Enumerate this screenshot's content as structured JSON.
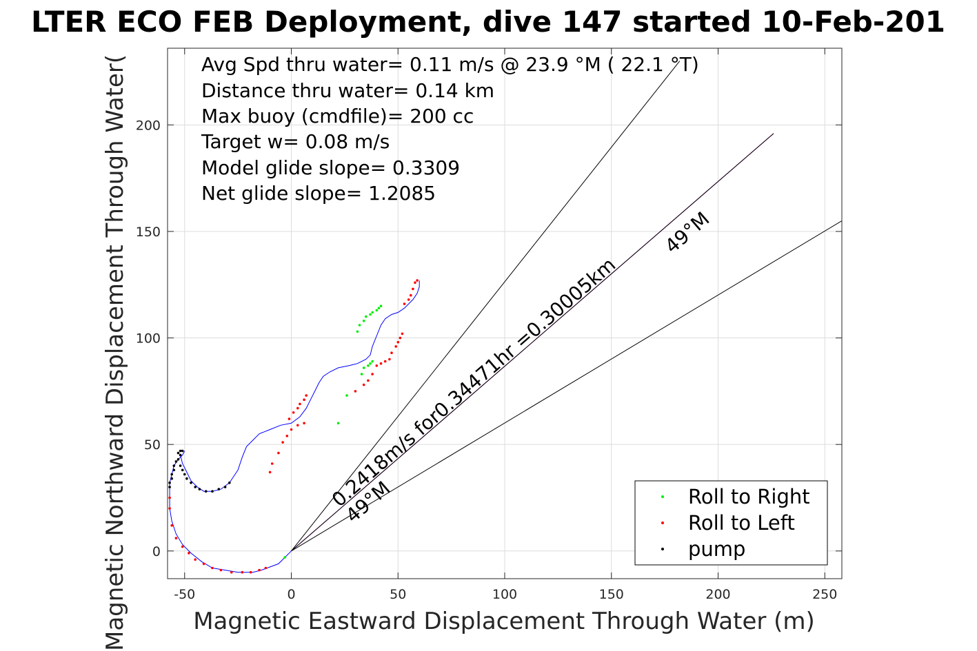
{
  "chart_data": {
    "type": "scatter",
    "title": "LTER ECO FEB Deployment, dive 147 started 10-Feb-201",
    "xlabel": "Magnetic Eastward Displacement Through Water (m)",
    "ylabel": "Magnetic Northward Displacement Through Water(",
    "xlim": [
      -58,
      258
    ],
    "ylim": [
      -13,
      236
    ],
    "xticks": [
      -50,
      0,
      50,
      100,
      150,
      200,
      250
    ],
    "yticks": [
      0,
      50,
      100,
      150,
      200
    ],
    "xtick_labels": [
      "-50",
      "0",
      "50",
      "100",
      "150",
      "200",
      "250"
    ],
    "ytick_labels": [
      "0",
      "50",
      "100",
      "150",
      "200"
    ],
    "grid": true,
    "legend_position": "bottom-right",
    "annotations": [
      "Avg Spd thru water=  0.11 m/s @  23.9 °M ( 22.1 °T)",
      "Distance thru water=  0.14 km",
      "Max buoy (cmdfile)= 200 cc",
      "Target w= 0.08 m/s",
      "Model glide slope= 0.3309",
      "Net glide slope= 1.2085"
    ],
    "current_label": "0.2418m/s for0.34471hr =0.30005km",
    "heading_labels": [
      "49°M",
      "49°M"
    ],
    "series": [
      {
        "name": "Roll to Right",
        "color": "#00ee00",
        "points": [
          [
            -3,
            -3
          ],
          [
            22,
            60
          ],
          [
            26,
            73
          ],
          [
            33,
            83
          ],
          [
            34,
            86
          ],
          [
            36,
            87
          ],
          [
            37,
            88
          ],
          [
            38,
            89
          ],
          [
            31,
            103
          ],
          [
            32,
            106
          ],
          [
            34,
            108
          ],
          [
            35,
            110
          ],
          [
            37,
            111
          ],
          [
            38,
            112
          ],
          [
            40,
            113
          ],
          [
            41,
            114
          ],
          [
            42,
            115
          ]
        ]
      },
      {
        "name": "Roll to Left",
        "color": "#ff0000",
        "points": [
          [
            -57,
            25
          ],
          [
            -57,
            20
          ],
          [
            -56,
            12
          ],
          [
            -54,
            6
          ],
          [
            -51,
            2
          ],
          [
            -48,
            -1
          ],
          [
            -45,
            -4
          ],
          [
            -41,
            -6
          ],
          [
            -37,
            -8
          ],
          [
            -33,
            -9
          ],
          [
            -28,
            -10
          ],
          [
            -23,
            -10
          ],
          [
            -19,
            -10
          ],
          [
            -15,
            -9
          ],
          [
            -12,
            -8
          ],
          [
            -10,
            37
          ],
          [
            -9,
            41
          ],
          [
            -6,
            46
          ],
          [
            -4,
            51
          ],
          [
            -2,
            54
          ],
          [
            0,
            57
          ],
          [
            3,
            59
          ],
          [
            6,
            60
          ],
          [
            -1,
            62
          ],
          [
            1,
            65
          ],
          [
            3,
            67
          ],
          [
            4,
            69
          ],
          [
            6,
            71
          ],
          [
            7,
            73
          ],
          [
            30,
            75
          ],
          [
            34,
            78
          ],
          [
            36,
            80
          ],
          [
            38,
            83
          ],
          [
            40,
            87
          ],
          [
            42,
            88
          ],
          [
            44,
            89
          ],
          [
            46,
            90
          ],
          [
            47,
            93
          ],
          [
            49,
            96
          ],
          [
            50,
            98
          ],
          [
            51,
            100
          ],
          [
            52,
            102
          ],
          [
            53,
            116
          ],
          [
            55,
            118
          ],
          [
            56,
            120
          ],
          [
            57,
            123
          ],
          [
            58,
            126
          ],
          [
            59,
            127
          ]
        ]
      },
      {
        "name": "pump",
        "color": "#000000",
        "points": [
          [
            -52,
            47
          ],
          [
            -51,
            47
          ],
          [
            -53,
            46
          ],
          [
            -52,
            45
          ],
          [
            -53,
            43
          ],
          [
            -54,
            42
          ],
          [
            -55,
            40
          ],
          [
            -55,
            38
          ],
          [
            -56,
            36
          ],
          [
            -56,
            34
          ],
          [
            -57,
            32
          ],
          [
            -57,
            30
          ],
          [
            -52,
            40
          ],
          [
            -51,
            38
          ],
          [
            -50,
            36
          ],
          [
            -49,
            34
          ],
          [
            -47,
            32
          ],
          [
            -45,
            30
          ],
          [
            -43,
            29
          ],
          [
            -40,
            28
          ],
          [
            -37,
            28
          ],
          [
            -34,
            29
          ],
          [
            -31,
            30
          ],
          [
            -29,
            32
          ]
        ]
      }
    ],
    "lines": [
      {
        "label": "track",
        "color": "#0000ff",
        "points": [
          [
            -50,
            47
          ],
          [
            -51,
            45
          ],
          [
            -53,
            43
          ],
          [
            -55,
            40
          ],
          [
            -56,
            36
          ],
          [
            -57,
            32
          ],
          [
            -57,
            28
          ],
          [
            -57,
            24
          ],
          [
            -57,
            20
          ],
          [
            -56,
            14
          ],
          [
            -54,
            8
          ],
          [
            -51,
            3
          ],
          [
            -47,
            -1
          ],
          [
            -42,
            -5
          ],
          [
            -37,
            -8
          ],
          [
            -31,
            -9
          ],
          [
            -25,
            -10
          ],
          [
            -18,
            -10
          ],
          [
            -14,
            -9
          ],
          [
            -6,
            -6
          ],
          [
            -3,
            -3
          ],
          [
            0,
            0
          ]
        ]
      },
      {
        "label": "track-hook",
        "color": "#0000ff",
        "points": [
          [
            -52,
            45
          ],
          [
            -51,
            41
          ],
          [
            -49,
            37
          ],
          [
            -47,
            33
          ],
          [
            -44,
            30
          ],
          [
            -41,
            28
          ],
          [
            -37,
            28
          ],
          [
            -33,
            29
          ],
          [
            -29,
            32
          ],
          [
            -27,
            35
          ],
          [
            -25,
            38
          ],
          [
            -23,
            44
          ],
          [
            -21,
            49
          ],
          [
            -18,
            52
          ],
          [
            -15,
            55
          ],
          [
            -10,
            57
          ],
          [
            -5,
            59
          ],
          [
            0,
            60
          ],
          [
            4,
            63
          ],
          [
            7,
            67
          ],
          [
            9,
            71
          ],
          [
            11,
            75
          ],
          [
            13,
            79
          ],
          [
            15,
            82
          ],
          [
            18,
            84
          ],
          [
            22,
            86
          ],
          [
            27,
            87
          ],
          [
            31,
            88
          ],
          [
            35,
            90
          ],
          [
            37,
            92
          ],
          [
            38,
            96
          ],
          [
            40,
            101
          ],
          [
            42,
            106
          ],
          [
            44,
            109
          ],
          [
            47,
            111
          ],
          [
            50,
            112
          ],
          [
            53,
            114
          ],
          [
            55,
            116
          ],
          [
            57,
            118
          ],
          [
            59,
            121
          ],
          [
            60,
            124
          ],
          [
            60,
            127
          ]
        ]
      },
      {
        "label": "current",
        "color": "#cc00cc",
        "points": [
          [
            0,
            0
          ],
          [
            226,
            196
          ]
        ]
      },
      {
        "label": "heading-1",
        "color": "#000000",
        "points": [
          [
            0,
            0
          ],
          [
            182,
            230
          ]
        ]
      },
      {
        "label": "heading-2",
        "color": "#000000",
        "points": [
          [
            0,
            0
          ],
          [
            258,
            155
          ]
        ]
      },
      {
        "label": "heading-3",
        "color": "#000000",
        "points": [
          [
            0,
            0
          ],
          [
            226,
            196
          ]
        ]
      }
    ]
  }
}
